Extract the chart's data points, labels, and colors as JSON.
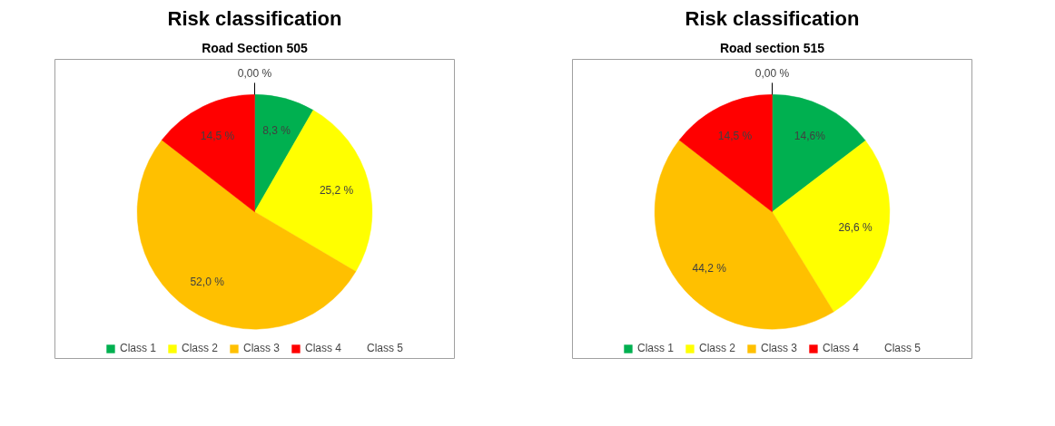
{
  "chart_data": [
    {
      "type": "pie",
      "title": "Risk classification",
      "subtitle": "Road Section 505",
      "categories": [
        "Class 1",
        "Class 2",
        "Class 3",
        "Class 4",
        "Class 5"
      ],
      "values": [
        8.3,
        25.2,
        52.0,
        14.5,
        0
      ],
      "value_labels": [
        "8,3 %",
        "25,2 %",
        "52,0 %",
        "14,5 %",
        "0,00 %"
      ],
      "colors": [
        "#00b050",
        "#ffff00",
        "#ffc000",
        "#ff0000",
        "#000000"
      ],
      "legend": "bottom"
    },
    {
      "type": "pie",
      "title": "Risk classification",
      "subtitle": "Road section 515",
      "categories": [
        "Class 1",
        "Class 2",
        "Class 3",
        "Class 4",
        "Class 5"
      ],
      "values": [
        14.6,
        26.6,
        44.2,
        14.5,
        0
      ],
      "value_labels": [
        "14,6%",
        "26,6 %",
        "44,2 %",
        "14,5 %",
        "0,00 %"
      ],
      "colors": [
        "#00b050",
        "#ffff00",
        "#ffc000",
        "#ff0000",
        "#000000"
      ],
      "legend": "bottom"
    }
  ]
}
